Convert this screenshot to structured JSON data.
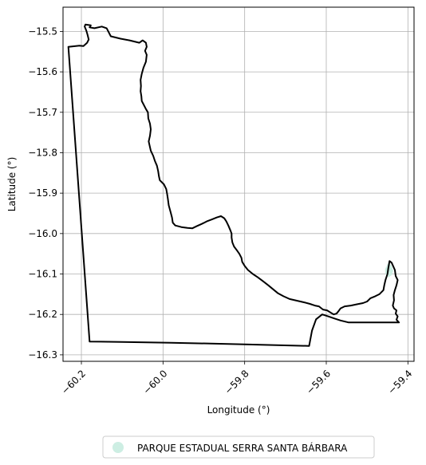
{
  "chart_data": {
    "type": "map",
    "xlabel": "Longitude (°)",
    "ylabel": "Latitude (°)",
    "xlim": [
      -60.245,
      -59.385
    ],
    "ylim": [
      -16.316,
      -15.44
    ],
    "x_ticks": [
      {
        "value": -60.2,
        "label": "−60.2"
      },
      {
        "value": -60.0,
        "label": "−60.0"
      },
      {
        "value": -59.8,
        "label": "−59.8"
      },
      {
        "value": -59.6,
        "label": "−59.6"
      },
      {
        "value": -59.4,
        "label": "−59.4"
      }
    ],
    "y_ticks": [
      {
        "value": -15.5,
        "label": "−15.5"
      },
      {
        "value": -15.6,
        "label": "−15.6"
      },
      {
        "value": -15.7,
        "label": "−15.7"
      },
      {
        "value": -15.8,
        "label": "−15.8"
      },
      {
        "value": -15.9,
        "label": "−15.9"
      },
      {
        "value": -16.0,
        "label": "−16.0"
      },
      {
        "value": -16.1,
        "label": "−16.1"
      },
      {
        "value": -16.2,
        "label": "−16.2"
      },
      {
        "value": -16.3,
        "label": "−16.3"
      }
    ],
    "grid": true,
    "legend": {
      "placement": "below",
      "entries": [
        {
          "label": "PARQUE ESTADUAL SERRA SANTA BÁRBARA",
          "color": "#cdeee3"
        }
      ]
    },
    "boundary_color": "#000000",
    "boundary": [
      [
        -60.232,
        -15.538
      ],
      [
        -60.205,
        -15.535
      ],
      [
        -60.195,
        -15.536
      ],
      [
        -60.186,
        -15.528
      ],
      [
        -60.182,
        -15.52
      ],
      [
        -60.185,
        -15.508
      ],
      [
        -60.188,
        -15.498
      ],
      [
        -60.192,
        -15.488
      ],
      [
        -60.19,
        -15.483
      ],
      [
        -60.177,
        -15.485
      ],
      [
        -60.18,
        -15.49
      ],
      [
        -60.168,
        -15.492
      ],
      [
        -60.15,
        -15.488
      ],
      [
        -60.138,
        -15.492
      ],
      [
        -60.128,
        -15.512
      ],
      [
        -60.104,
        -15.518
      ],
      [
        -60.082,
        -15.522
      ],
      [
        -60.058,
        -15.528
      ],
      [
        -60.05,
        -15.522
      ],
      [
        -60.042,
        -15.528
      ],
      [
        -60.04,
        -15.538
      ],
      [
        -60.044,
        -15.548
      ],
      [
        -60.04,
        -15.558
      ],
      [
        -60.042,
        -15.575
      ],
      [
        -60.048,
        -15.59
      ],
      [
        -60.052,
        -15.605
      ],
      [
        -60.055,
        -15.62
      ],
      [
        -60.054,
        -15.635
      ],
      [
        -60.055,
        -15.648
      ],
      [
        -60.053,
        -15.66
      ],
      [
        -60.052,
        -15.672
      ],
      [
        -60.048,
        -15.68
      ],
      [
        -60.042,
        -15.692
      ],
      [
        -60.037,
        -15.7
      ],
      [
        -60.036,
        -15.715
      ],
      [
        -60.032,
        -15.728
      ],
      [
        -60.03,
        -15.742
      ],
      [
        -60.032,
        -15.758
      ],
      [
        -60.035,
        -15.772
      ],
      [
        -60.033,
        -15.782
      ],
      [
        -60.03,
        -15.795
      ],
      [
        -60.024,
        -15.808
      ],
      [
        -60.02,
        -15.82
      ],
      [
        -60.015,
        -15.832
      ],
      [
        -60.012,
        -15.845
      ],
      [
        -60.01,
        -15.858
      ],
      [
        -60.008,
        -15.868
      ],
      [
        -59.998,
        -15.878
      ],
      [
        -59.992,
        -15.89
      ],
      [
        -59.99,
        -15.902
      ],
      [
        -59.988,
        -15.915
      ],
      [
        -59.986,
        -15.93
      ],
      [
        -59.982,
        -15.945
      ],
      [
        -59.978,
        -15.96
      ],
      [
        -59.976,
        -15.973
      ],
      [
        -59.97,
        -15.98
      ],
      [
        -59.955,
        -15.984
      ],
      [
        -59.94,
        -15.986
      ],
      [
        -59.928,
        -15.987
      ],
      [
        -59.918,
        -15.982
      ],
      [
        -59.905,
        -15.976
      ],
      [
        -59.893,
        -15.97
      ],
      [
        -59.88,
        -15.965
      ],
      [
        -59.868,
        -15.96
      ],
      [
        -59.858,
        -15.957
      ],
      [
        -59.85,
        -15.962
      ],
      [
        -59.845,
        -15.97
      ],
      [
        -59.84,
        -15.98
      ],
      [
        -59.835,
        -15.992
      ],
      [
        -59.832,
        -16.0
      ],
      [
        -59.832,
        -16.01
      ],
      [
        -59.83,
        -16.022
      ],
      [
        -59.826,
        -16.032
      ],
      [
        -59.82,
        -16.04
      ],
      [
        -59.813,
        -16.05
      ],
      [
        -59.808,
        -16.06
      ],
      [
        -59.806,
        -16.07
      ],
      [
        -59.8,
        -16.08
      ],
      [
        -59.792,
        -16.09
      ],
      [
        -59.78,
        -16.1
      ],
      [
        -59.768,
        -16.108
      ],
      [
        -59.755,
        -16.118
      ],
      [
        -59.742,
        -16.128
      ],
      [
        -59.73,
        -16.138
      ],
      [
        -59.718,
        -16.148
      ],
      [
        -59.705,
        -16.155
      ],
      [
        -59.69,
        -16.162
      ],
      [
        -59.672,
        -16.166
      ],
      [
        -59.655,
        -16.17
      ],
      [
        -59.64,
        -16.174
      ],
      [
        -59.628,
        -16.178
      ],
      [
        -59.618,
        -16.18
      ],
      [
        -59.608,
        -16.188
      ],
      [
        -59.598,
        -16.19
      ],
      [
        -59.59,
        -16.195
      ],
      [
        -59.582,
        -16.2
      ],
      [
        -59.575,
        -16.198
      ],
      [
        -59.57,
        -16.192
      ],
      [
        -59.565,
        -16.185
      ],
      [
        -59.555,
        -16.18
      ],
      [
        -59.54,
        -16.178
      ],
      [
        -59.525,
        -16.175
      ],
      [
        -59.51,
        -16.172
      ],
      [
        -59.5,
        -16.168
      ],
      [
        -59.492,
        -16.16
      ],
      [
        -59.48,
        -16.155
      ],
      [
        -59.47,
        -16.15
      ],
      [
        -59.46,
        -16.14
      ],
      [
        -59.458,
        -16.128
      ],
      [
        -59.455,
        -16.115
      ],
      [
        -59.45,
        -16.1
      ],
      [
        -59.448,
        -16.085
      ],
      [
        -59.445,
        -16.068
      ],
      [
        -59.44,
        -16.072
      ],
      [
        -59.432,
        -16.09
      ],
      [
        -59.43,
        -16.105
      ],
      [
        -59.425,
        -16.115
      ],
      [
        -59.428,
        -16.128
      ],
      [
        -59.432,
        -16.14
      ],
      [
        -59.435,
        -16.152
      ],
      [
        -59.434,
        -16.165
      ],
      [
        -59.437,
        -16.178
      ],
      [
        -59.434,
        -16.185
      ],
      [
        -59.428,
        -16.19
      ],
      [
        -59.43,
        -16.198
      ],
      [
        -59.425,
        -16.205
      ],
      [
        -59.428,
        -16.213
      ],
      [
        -59.422,
        -16.22
      ],
      [
        -59.46,
        -16.22
      ],
      [
        -59.5,
        -16.22
      ],
      [
        -59.545,
        -16.22
      ],
      [
        -59.565,
        -16.215
      ],
      [
        -59.58,
        -16.21
      ],
      [
        -59.595,
        -16.205
      ],
      [
        -59.61,
        -16.2
      ],
      [
        -59.625,
        -16.212
      ],
      [
        -59.635,
        -16.24
      ],
      [
        -59.642,
        -16.278
      ],
      [
        -59.8,
        -16.274
      ],
      [
        -59.98,
        -16.27
      ],
      [
        -60.1,
        -16.268
      ],
      [
        -60.18,
        -16.267
      ],
      [
        -60.232,
        -15.538
      ]
    ],
    "park_area": [
      [
        -59.448,
        -16.072
      ],
      [
        -59.44,
        -16.08
      ],
      [
        -59.436,
        -16.092
      ],
      [
        -59.44,
        -16.103
      ],
      [
        -59.448,
        -16.108
      ],
      [
        -59.455,
        -16.1
      ],
      [
        -59.456,
        -16.088
      ]
    ]
  }
}
